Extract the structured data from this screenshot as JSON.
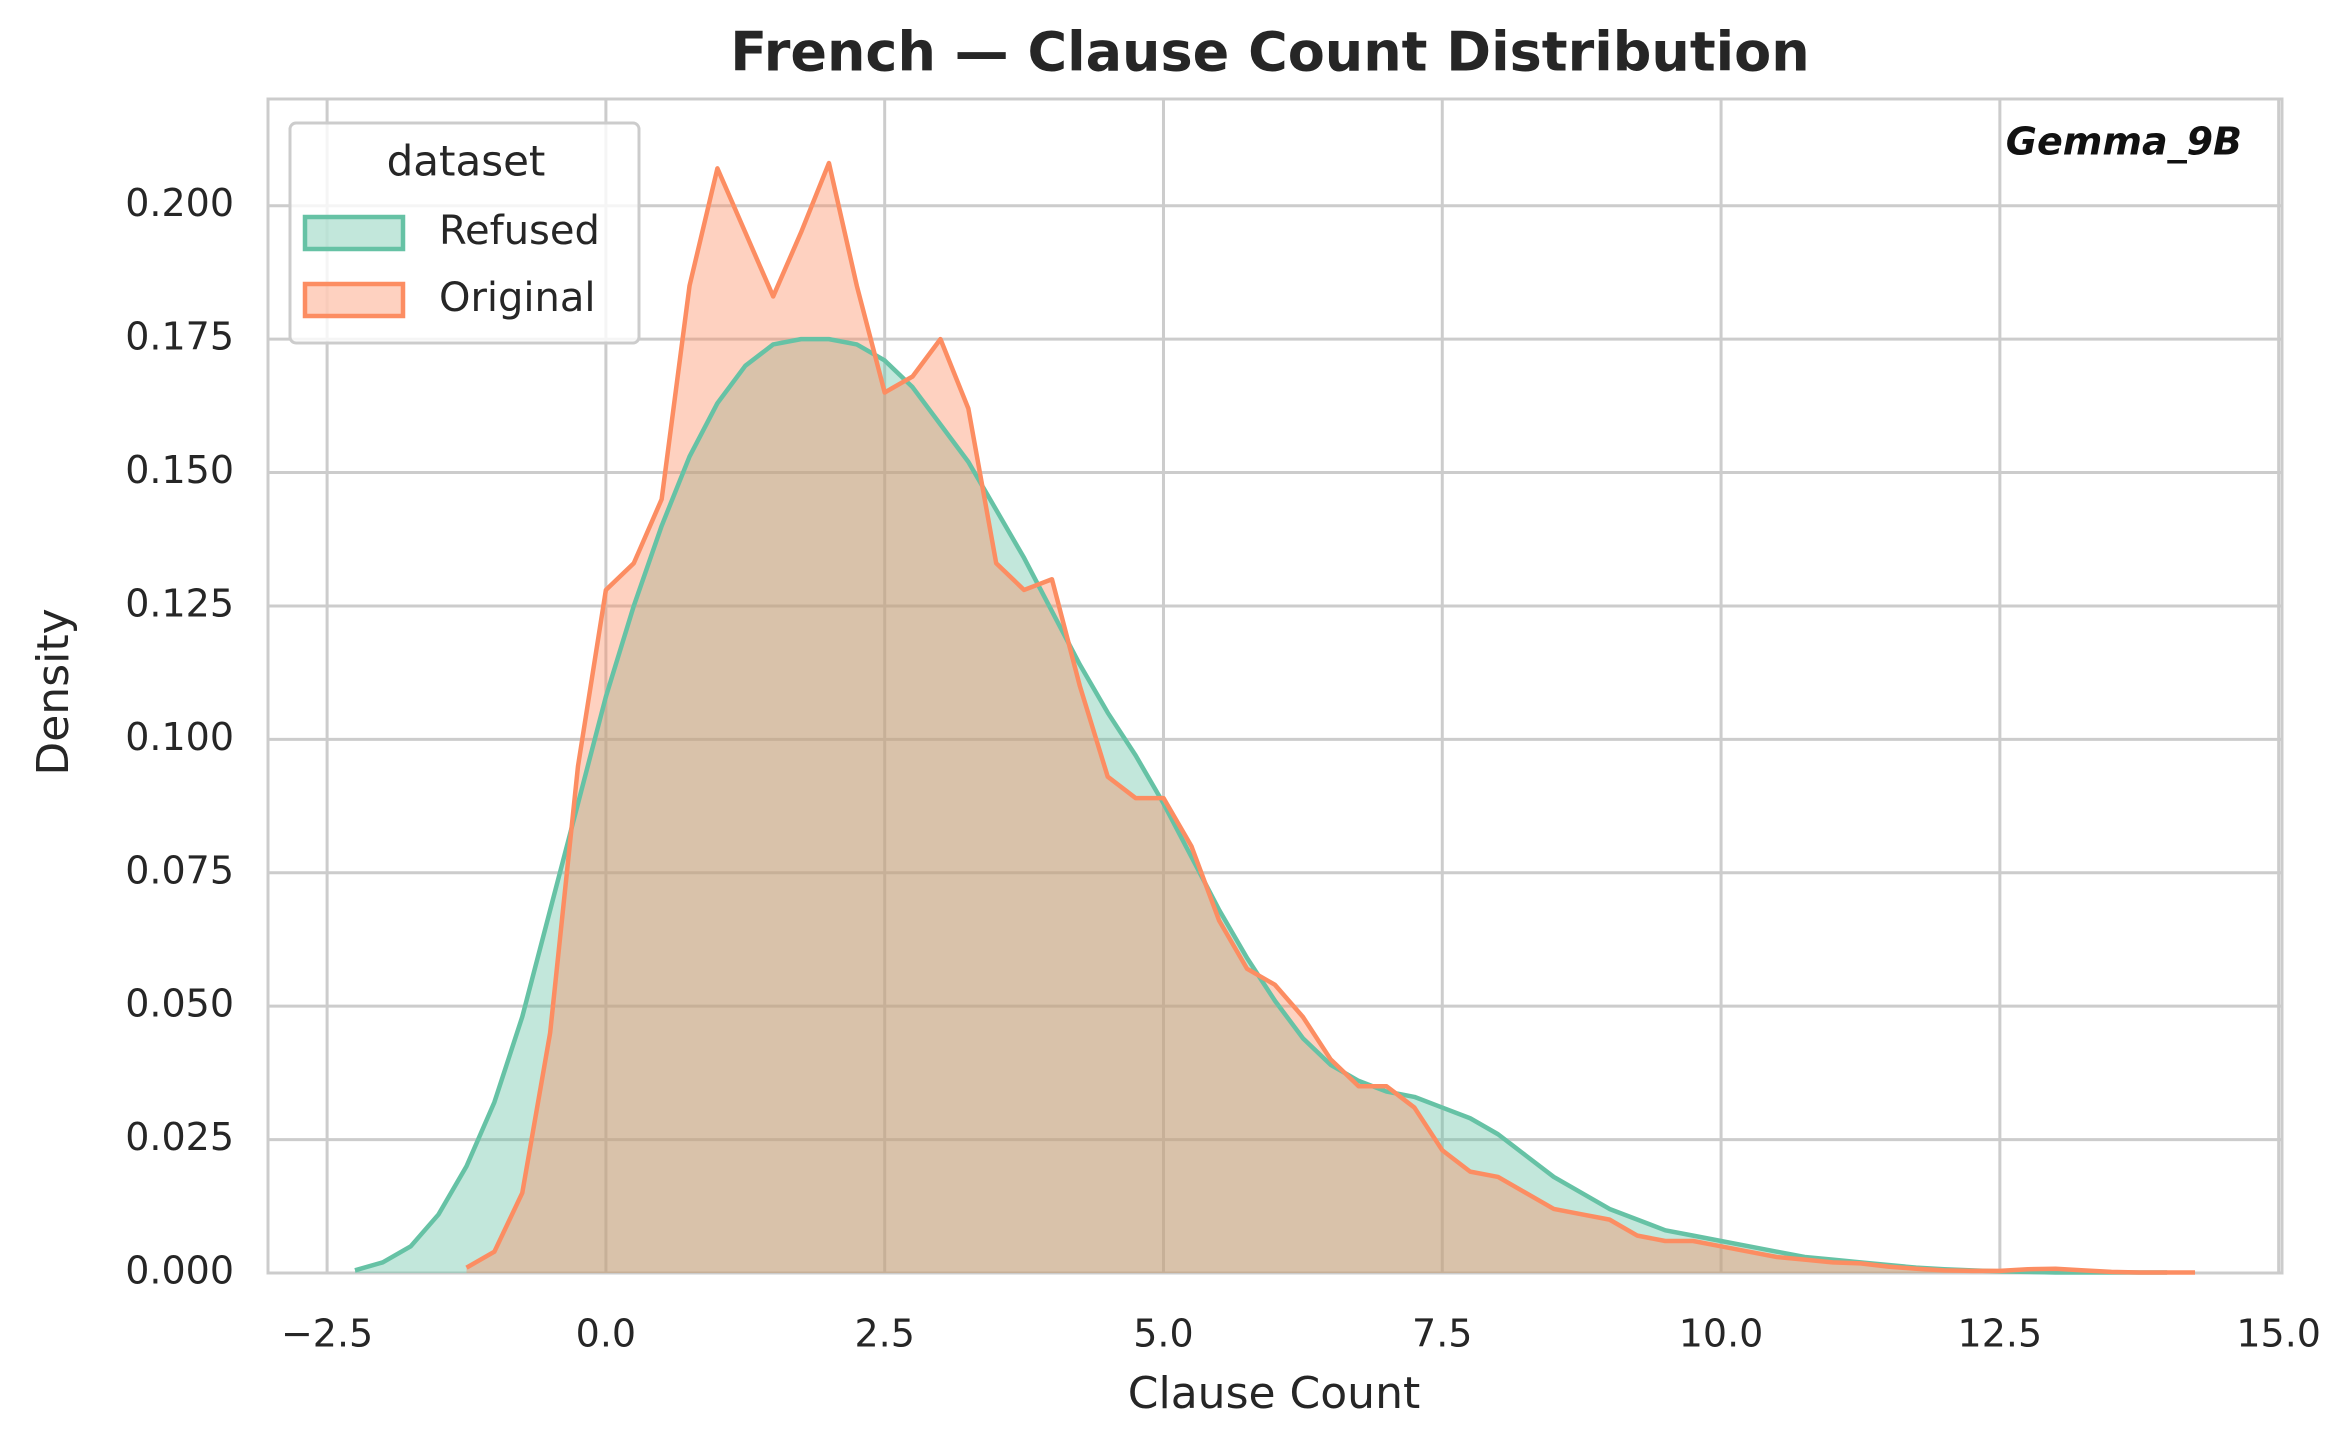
{
  "chart_data": {
    "type": "area",
    "title": "French — Clause Count Distribution",
    "annotation": "Gemma_9B",
    "xlabel": "Clause Count",
    "ylabel": "Density",
    "legend_title": "dataset",
    "legend": "upper left",
    "grid": true,
    "x": [
      -2.25,
      -2,
      -1.75,
      -1.5,
      -1.25,
      -1,
      -0.75,
      -0.5,
      -0.25,
      0,
      0.25,
      0.5,
      0.75,
      1,
      1.25,
      1.5,
      1.75,
      2,
      2.25,
      2.5,
      2.75,
      3,
      3.25,
      3.5,
      3.75,
      4,
      4.25,
      4.5,
      4.75,
      5,
      5.25,
      5.5,
      5.75,
      6,
      6.25,
      6.5,
      6.75,
      7,
      7.25,
      7.5,
      7.75,
      8,
      8.25,
      8.5,
      8.75,
      9,
      9.25,
      9.5,
      9.75,
      10,
      10.25,
      10.5,
      10.75,
      11,
      11.25,
      11.5,
      11.75,
      12,
      12.25,
      12.5,
      12.75,
      13,
      13.25,
      13.5,
      13.75,
      14,
      14.25
    ],
    "series": [
      {
        "name": "Refused",
        "color": "#66c2a5",
        "values": [
          0.0005,
          0.002,
          0.005,
          0.011,
          0.02,
          0.032,
          0.048,
          0.068,
          0.088,
          0.108,
          0.125,
          0.14,
          0.153,
          0.163,
          0.17,
          0.174,
          0.175,
          0.175,
          0.174,
          0.171,
          0.166,
          0.159,
          0.152,
          0.143,
          0.134,
          0.124,
          0.114,
          0.105,
          0.097,
          0.088,
          0.078,
          0.068,
          0.059,
          0.051,
          0.044,
          0.039,
          0.036,
          0.034,
          0.033,
          0.031,
          0.029,
          0.026,
          0.022,
          0.018,
          0.015,
          0.012,
          0.01,
          0.008,
          0.007,
          0.006,
          0.005,
          0.004,
          0.003,
          0.0025,
          0.002,
          0.0015,
          0.001,
          0.0007,
          0.0005,
          0.0003,
          0.0002,
          0.0001,
          0.0001,
          0.0001,
          0.0001,
          0.0001,
          null
        ]
      },
      {
        "name": "Original",
        "color": "#fc8d62",
        "values": [
          null,
          null,
          null,
          null,
          0.001,
          0.004,
          0.015,
          0.045,
          0.095,
          0.128,
          0.133,
          0.145,
          0.185,
          0.207,
          0.195,
          0.183,
          0.195,
          0.208,
          0.185,
          0.165,
          0.168,
          0.175,
          0.162,
          0.133,
          0.128,
          0.13,
          0.11,
          0.093,
          0.089,
          0.089,
          0.08,
          0.066,
          0.057,
          0.054,
          0.048,
          0.04,
          0.035,
          0.035,
          0.031,
          0.023,
          0.019,
          0.018,
          0.015,
          0.012,
          0.011,
          0.01,
          0.007,
          0.006,
          0.006,
          0.005,
          0.004,
          0.003,
          0.0025,
          0.002,
          0.0018,
          0.0012,
          0.0008,
          0.0005,
          0.0004,
          0.0004,
          0.0007,
          0.0008,
          0.0005,
          0.0002,
          0.0001,
          0.0001,
          0.0001
        ]
      }
    ],
    "xlim": [
      -3.03,
      15.03
    ],
    "ylim": [
      0,
      0.22
    ],
    "xticks": [
      {
        "value": -2.5,
        "label": "−2.5"
      },
      {
        "value": 0,
        "label": "0.0"
      },
      2.5,
      {
        "value": 5,
        "label": "5.0"
      },
      7.5,
      {
        "value": 10,
        "label": "10.0"
      },
      12.5,
      {
        "value": 15,
        "label": "15.0"
      }
    ],
    "yticks": [
      {
        "value": 0,
        "label": "0.000"
      },
      0.025,
      {
        "value": 0.05,
        "label": "0.050"
      },
      0.075,
      {
        "value": 0.1,
        "label": "0.100"
      },
      0.125,
      {
        "value": 0.15,
        "label": "0.150"
      },
      0.175,
      {
        "value": 0.2,
        "label": "0.200"
      }
    ]
  }
}
